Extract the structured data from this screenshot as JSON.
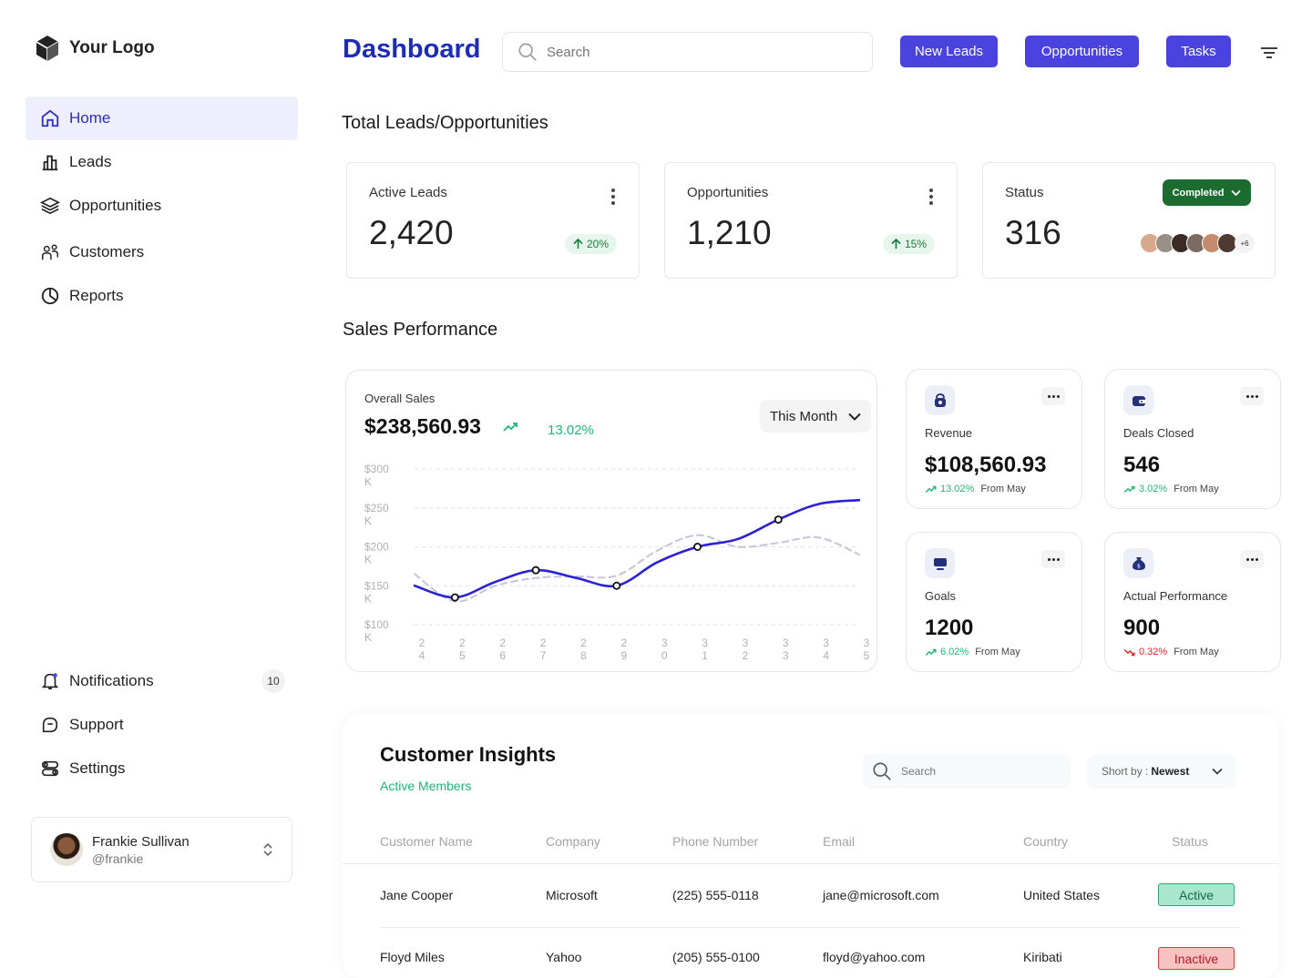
{
  "brand": {
    "logo_text": "Your Logo"
  },
  "nav": {
    "items": [
      {
        "label": "Home",
        "icon": "home-icon",
        "active": true
      },
      {
        "label": "Leads",
        "icon": "bar-chart-icon"
      },
      {
        "label": "Opportunities",
        "icon": "layers-icon"
      },
      {
        "label": "Customers",
        "icon": "users-icon"
      },
      {
        "label": "Reports",
        "icon": "pie-chart-icon"
      }
    ],
    "bottom": [
      {
        "label": "Notifications",
        "icon": "bell-icon",
        "badge": "10"
      },
      {
        "label": "Support",
        "icon": "chat-icon"
      },
      {
        "label": "Settings",
        "icon": "toggle-icon"
      }
    ]
  },
  "user": {
    "name": "Frankie Sullivan",
    "handle": "@frankie"
  },
  "header": {
    "title": "Dashboard",
    "search_placeholder": "Search",
    "buttons": {
      "new_leads": "New Leads",
      "opportunities": "Opportunities",
      "tasks": "Tasks"
    }
  },
  "totals": {
    "section_title": "Total Leads/Opportunities",
    "active_leads": {
      "label": "Active Leads",
      "value": "2,420",
      "trend": "20%"
    },
    "opportunities": {
      "label": "Opportunities",
      "value": "1,210",
      "trend": "15%"
    },
    "status": {
      "label": "Status",
      "value": "316",
      "pill": "Completed",
      "more": "+6"
    }
  },
  "sales": {
    "section_title": "Sales Performance",
    "overall_label": "Overall Sales",
    "overall_value": "$238,560.93",
    "overall_pct": "13.02%",
    "period": "This Month"
  },
  "chart_data": {
    "type": "line",
    "y_ticks": [
      {
        "top": "$300",
        "bottom": "K"
      },
      {
        "top": "$250",
        "bottom": "K"
      },
      {
        "top": "$200",
        "bottom": "K"
      },
      {
        "top": "$150",
        "bottom": "K"
      },
      {
        "top": "$100",
        "bottom": "K"
      }
    ],
    "x_ticks": [
      {
        "top": "2",
        "bottom": "4"
      },
      {
        "top": "2",
        "bottom": "5"
      },
      {
        "top": "2",
        "bottom": "6"
      },
      {
        "top": "2",
        "bottom": "7"
      },
      {
        "top": "2",
        "bottom": "8"
      },
      {
        "top": "2",
        "bottom": "9"
      },
      {
        "top": "3",
        "bottom": "0"
      },
      {
        "top": "3",
        "bottom": "1"
      },
      {
        "top": "3",
        "bottom": "2"
      },
      {
        "top": "3",
        "bottom": "3"
      },
      {
        "top": "3",
        "bottom": "4"
      },
      {
        "top": "3",
        "bottom": "5"
      }
    ],
    "x": [
      24,
      25,
      26,
      27,
      28,
      29,
      30,
      31,
      32,
      33,
      34,
      35
    ],
    "ylim": [
      100,
      300
    ],
    "series": [
      {
        "values": [
          150,
          135,
          155,
          170,
          160,
          150,
          180,
          200,
          210,
          235,
          255,
          260
        ],
        "style": "solid",
        "color": "#2b22d4"
      },
      {
        "values": [
          165,
          130,
          150,
          160,
          162,
          163,
          195,
          215,
          200,
          205,
          212,
          190
        ],
        "style": "dashed",
        "color": "#c4c4d8"
      }
    ],
    "markers": [
      1,
      3,
      5,
      7,
      9
    ]
  },
  "metrics": [
    {
      "label": "Revenue",
      "value": "$108,560.93",
      "pct": "13.02%",
      "dir": "up",
      "from": "From May",
      "icon": "lock-bag-icon"
    },
    {
      "label": "Deals Closed",
      "value": "546",
      "pct": "3.02%",
      "dir": "up",
      "from": "From May",
      "icon": "wallet-icon"
    },
    {
      "label": "Goals",
      "value": "1200",
      "pct": "6.02%",
      "dir": "up",
      "from": "From May",
      "icon": "monitor-icon"
    },
    {
      "label": "Actual Performance",
      "value": "900",
      "pct": "0.32%",
      "dir": "down",
      "from": "From May",
      "icon": "money-bag-icon"
    }
  ],
  "insights": {
    "title": "Customer Insights",
    "subtitle": "Active Members",
    "search_placeholder": "Search",
    "sort_label": "Short by :",
    "sort_value": "Newest",
    "columns": [
      "Customer Name",
      "Company",
      "Phone Number",
      "Email",
      "Country",
      "Status"
    ],
    "rows": [
      {
        "name": "Jane Cooper",
        "company": "Microsoft",
        "phone": "(225) 555-0118",
        "email": "jane@microsoft.com",
        "country": "United States",
        "status": "Active"
      },
      {
        "name": "Floyd Miles",
        "company": "Yahoo",
        "phone": "(205) 555-0100",
        "email": "floyd@yahoo.com",
        "country": "Kiribati",
        "status": "Inactive"
      }
    ]
  },
  "colors": {
    "accent": "#4b43e0",
    "title_blue": "#1c2cb8",
    "green": "#22b573",
    "red": "#e02424",
    "completed": "#1c6b2f"
  }
}
